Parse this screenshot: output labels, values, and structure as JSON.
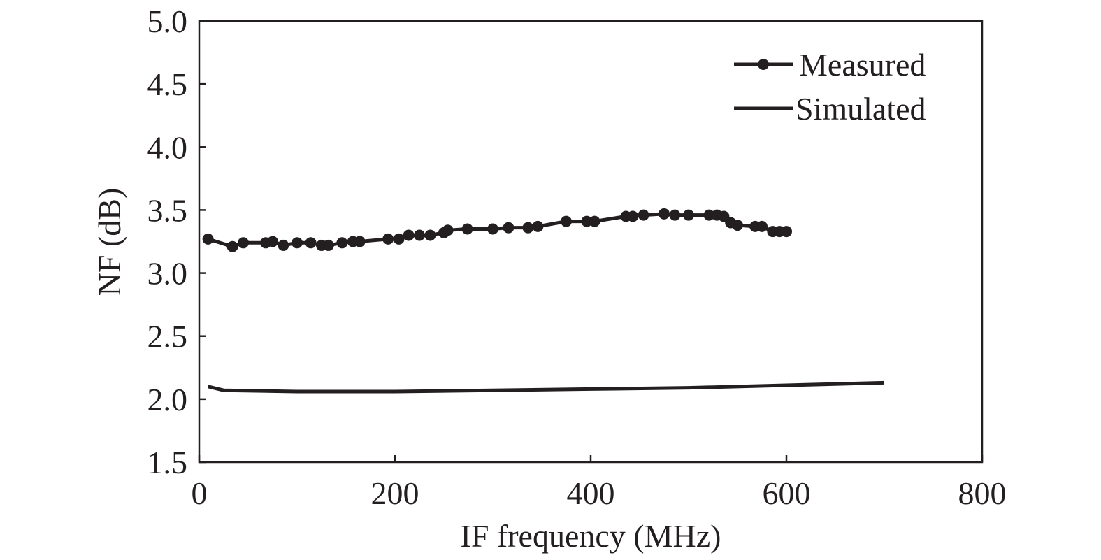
{
  "chart_data": {
    "type": "line",
    "xlabel": "IF frequency (MHz)",
    "ylabel": "NF (dB)",
    "xlim": [
      0,
      800
    ],
    "ylim": [
      1.5,
      5.0
    ],
    "xticks": [
      "0",
      "200",
      "400",
      "600",
      "800"
    ],
    "yticks": [
      "1.5",
      "2.0",
      "2.5",
      "3.0",
      "3.5",
      "4.0",
      "4.5",
      "5.0"
    ],
    "legend_position": "top-right",
    "colors": {
      "ink": "#231f20"
    },
    "series": [
      {
        "name": "Measured",
        "marker": "circle",
        "x": [
          9,
          34,
          45,
          68,
          75,
          86,
          100,
          114,
          125,
          132,
          146,
          157,
          164,
          193,
          204,
          214,
          225,
          236,
          250,
          254,
          274,
          300,
          316,
          336,
          346,
          375,
          396,
          404,
          436,
          443,
          454,
          475,
          486,
          500,
          521,
          529,
          536,
          543,
          550,
          568,
          575,
          586,
          593,
          600
        ],
        "y": [
          3.27,
          3.21,
          3.24,
          3.24,
          3.25,
          3.22,
          3.24,
          3.24,
          3.22,
          3.22,
          3.24,
          3.25,
          3.25,
          3.27,
          3.27,
          3.3,
          3.3,
          3.3,
          3.32,
          3.34,
          3.35,
          3.35,
          3.36,
          3.36,
          3.37,
          3.41,
          3.41,
          3.41,
          3.45,
          3.45,
          3.46,
          3.47,
          3.46,
          3.46,
          3.46,
          3.46,
          3.45,
          3.4,
          3.38,
          3.37,
          3.37,
          3.33,
          3.33,
          3.33
        ]
      },
      {
        "name": "Simulated",
        "marker": "none",
        "x": [
          9,
          25,
          100,
          200,
          300,
          400,
          500,
          600,
          700
        ],
        "y": [
          2.1,
          2.07,
          2.06,
          2.06,
          2.07,
          2.08,
          2.09,
          2.11,
          2.13
        ]
      }
    ]
  }
}
